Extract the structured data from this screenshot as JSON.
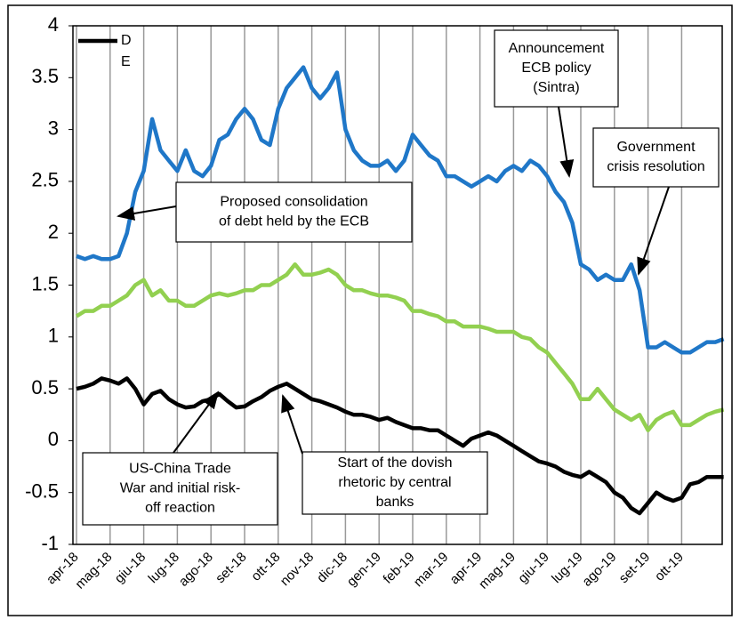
{
  "chart_data": {
    "type": "line",
    "categories": [
      "apr-18",
      null,
      null,
      null,
      "mag-18",
      null,
      null,
      null,
      "giu-18",
      null,
      null,
      null,
      "lug-18",
      null,
      null,
      null,
      "ago-18",
      null,
      null,
      null,
      "set-18",
      null,
      null,
      null,
      "ott-18",
      null,
      null,
      null,
      "nov-18",
      null,
      null,
      null,
      "dic-18",
      null,
      null,
      null,
      "gen-19",
      null,
      null,
      null,
      "feb-19",
      null,
      null,
      null,
      "mar-19",
      null,
      null,
      null,
      "apr-19",
      null,
      null,
      null,
      "mag-19",
      null,
      null,
      null,
      "giu-19",
      null,
      null,
      null,
      "lug-19",
      null,
      null,
      null,
      "ago-19",
      null,
      null,
      null,
      "set-19",
      null,
      null,
      null,
      "ott-19",
      null,
      null,
      null,
      null,
      null
    ],
    "series": [
      {
        "color": "#1f77c8",
        "values": [
          1.78,
          1.75,
          1.78,
          1.75,
          1.75,
          1.78,
          2.0,
          2.4,
          2.6,
          3.1,
          2.8,
          2.7,
          2.6,
          2.8,
          2.6,
          2.55,
          2.65,
          2.9,
          2.95,
          3.1,
          3.2,
          3.1,
          2.9,
          2.85,
          3.2,
          3.4,
          3.5,
          3.6,
          3.4,
          3.3,
          3.4,
          3.55,
          3.0,
          2.8,
          2.7,
          2.65,
          2.65,
          2.7,
          2.6,
          2.7,
          2.95,
          2.85,
          2.75,
          2.7,
          2.55,
          2.55,
          2.5,
          2.45,
          2.5,
          2.55,
          2.5,
          2.6,
          2.65,
          2.6,
          2.7,
          2.65,
          2.55,
          2.4,
          2.3,
          2.1,
          1.7,
          1.65,
          1.55,
          1.6,
          1.55,
          1.55,
          1.7,
          1.45,
          0.9,
          0.9,
          0.95,
          0.9,
          0.85,
          0.85,
          0.9,
          0.95,
          0.95,
          0.98
        ]
      },
      {
        "color": "#92d050",
        "values": [
          1.2,
          1.25,
          1.25,
          1.3,
          1.3,
          1.35,
          1.4,
          1.5,
          1.55,
          1.4,
          1.45,
          1.35,
          1.35,
          1.3,
          1.3,
          1.35,
          1.4,
          1.42,
          1.4,
          1.42,
          1.45,
          1.45,
          1.5,
          1.5,
          1.55,
          1.6,
          1.7,
          1.6,
          1.6,
          1.62,
          1.65,
          1.6,
          1.5,
          1.45,
          1.45,
          1.42,
          1.4,
          1.4,
          1.38,
          1.35,
          1.25,
          1.25,
          1.22,
          1.2,
          1.15,
          1.15,
          1.1,
          1.1,
          1.1,
          1.08,
          1.05,
          1.05,
          1.05,
          1.0,
          0.98,
          0.9,
          0.85,
          0.75,
          0.65,
          0.55,
          0.4,
          0.4,
          0.5,
          0.4,
          0.3,
          0.25,
          0.2,
          0.25,
          0.1,
          0.2,
          0.25,
          0.28,
          0.15,
          0.15,
          0.2,
          0.25,
          0.28,
          0.3
        ]
      },
      {
        "name": "DE",
        "color": "#000000",
        "values": [
          0.5,
          0.52,
          0.55,
          0.6,
          0.58,
          0.55,
          0.6,
          0.5,
          0.35,
          0.45,
          0.48,
          0.4,
          0.35,
          0.32,
          0.33,
          0.38,
          0.4,
          0.45,
          0.38,
          0.32,
          0.33,
          0.38,
          0.42,
          0.48,
          0.52,
          0.55,
          0.5,
          0.45,
          0.4,
          0.38,
          0.35,
          0.32,
          0.28,
          0.25,
          0.25,
          0.23,
          0.2,
          0.22,
          0.18,
          0.15,
          0.12,
          0.12,
          0.1,
          0.1,
          0.05,
          0.0,
          -0.05,
          0.02,
          0.05,
          0.08,
          0.05,
          0.0,
          -0.05,
          -0.1,
          -0.15,
          -0.2,
          -0.22,
          -0.25,
          -0.3,
          -0.33,
          -0.35,
          -0.3,
          -0.35,
          -0.4,
          -0.5,
          -0.55,
          -0.65,
          -0.7,
          -0.6,
          -0.5,
          -0.55,
          -0.58,
          -0.55,
          -0.42,
          -0.4,
          -0.35,
          -0.35,
          -0.35
        ]
      }
    ],
    "ylim": [
      -1,
      4
    ],
    "yticks": [
      -1,
      -0.5,
      0,
      0.5,
      1,
      1.5,
      2,
      2.5,
      3,
      3.5,
      4
    ],
    "grid": true,
    "legend": "top-left",
    "annotations": [
      {
        "lines": [
          "Proposed consolidation",
          "of debt held by the ECB"
        ]
      },
      {
        "lines": [
          "Announcement",
          "ECB policy",
          "(Sintra)"
        ]
      },
      {
        "lines": [
          "Government",
          "crisis resolution"
        ]
      },
      {
        "lines": [
          "US-China Trade",
          "War and initial risk-",
          "off reaction"
        ]
      },
      {
        "lines": [
          "Start of the dovish",
          "rhetoric by central",
          "banks"
        ]
      }
    ]
  }
}
